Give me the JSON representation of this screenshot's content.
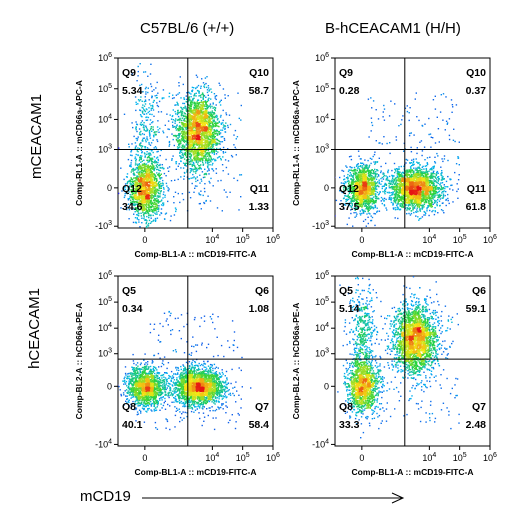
{
  "figure": {
    "column_titles": [
      "C57BL/6 (+/+)",
      "B-hCEACAM1 (H/H)"
    ],
    "row_titles": [
      "mCEACAM1",
      "hCEACAM1"
    ],
    "x_title": "mCD19"
  },
  "chart_data": [
    {
      "type": "scatter",
      "strain": "C57BL/6 (+/+)",
      "row": "mCEACAM1",
      "xlabel": "Comp-BL1-A :: mCD19-FITC-A",
      "ylabel": "Comp-RL1-A :: mCD66a-APC-A",
      "x_scale": "biexponential",
      "y_scale": "biexponential",
      "x_ticks": [
        "0",
        "10^4",
        "10^5",
        "10^6"
      ],
      "y_ticks": [
        "-10^3",
        "0",
        "10^3",
        "10^4",
        "10^5",
        "10^6"
      ],
      "quadrants": [
        {
          "name": "Q9",
          "position": "top-left",
          "percent": "5.34"
        },
        {
          "name": "Q10",
          "position": "top-right",
          "percent": "58.7"
        },
        {
          "name": "Q11",
          "position": "bottom-right",
          "percent": "1.33"
        },
        {
          "name": "Q12",
          "position": "bottom-left",
          "percent": "34.6"
        }
      ],
      "populations": [
        {
          "cx": 0,
          "cy": 0,
          "sx": 0.055,
          "sy": 0.09,
          "n": 1400
        },
        {
          "cx": 3200,
          "cy": 4200,
          "sx": 0.07,
          "sy": 0.11,
          "n": 2200
        },
        {
          "cx": 0,
          "cy": 6000,
          "sx": 0.045,
          "sy": 0.17,
          "n": 260
        }
      ]
    },
    {
      "type": "scatter",
      "strain": "B-hCEACAM1 (H/H)",
      "row": "mCEACAM1",
      "xlabel": "Comp-BL1-A :: mCD19-FITC-A",
      "ylabel": "Comp-RL1-A :: mCD66a-APC-A",
      "x_scale": "biexponential",
      "y_scale": "biexponential",
      "x_ticks": [
        "0",
        "10^4",
        "10^5",
        "10^6"
      ],
      "y_ticks": [
        "-10^3",
        "0",
        "10^3",
        "10^4",
        "10^5",
        "10^6"
      ],
      "quadrants": [
        {
          "name": "Q9",
          "position": "top-left",
          "percent": "0.28"
        },
        {
          "name": "Q10",
          "position": "top-right",
          "percent": "0.37"
        },
        {
          "name": "Q11",
          "position": "bottom-right",
          "percent": "61.8"
        },
        {
          "name": "Q12",
          "position": "bottom-left",
          "percent": "37.5"
        }
      ],
      "populations": [
        {
          "cx": 0,
          "cy": 0,
          "sx": 0.055,
          "sy": 0.07,
          "n": 1300
        },
        {
          "cx": 3200,
          "cy": 0,
          "sx": 0.08,
          "sy": 0.06,
          "n": 2100
        }
      ]
    },
    {
      "type": "scatter",
      "strain": "C57BL/6 (+/+)",
      "row": "hCEACAM1",
      "xlabel": "Comp-BL1-A :: mCD19-FITC-A",
      "ylabel": "Comp-BL2-A :: hCD66a-PE-A",
      "x_scale": "biexponential",
      "y_scale": "biexponential",
      "x_ticks": [
        "0",
        "10^4",
        "10^5",
        "10^6"
      ],
      "y_ticks": [
        "-10^4",
        "0",
        "10^3",
        "10^4",
        "10^5",
        "10^6"
      ],
      "quadrants": [
        {
          "name": "Q5",
          "position": "top-left",
          "percent": "0.34"
        },
        {
          "name": "Q6",
          "position": "top-right",
          "percent": "1.08"
        },
        {
          "name": "Q7",
          "position": "bottom-right",
          "percent": "58.4"
        },
        {
          "name": "Q8",
          "position": "bottom-left",
          "percent": "40.1"
        }
      ],
      "populations": [
        {
          "cx": 0,
          "cy": 0,
          "sx": 0.06,
          "sy": 0.06,
          "n": 1400
        },
        {
          "cx": 3400,
          "cy": 0,
          "sx": 0.08,
          "sy": 0.055,
          "n": 2100
        }
      ]
    },
    {
      "type": "scatter",
      "strain": "B-hCEACAM1 (H/H)",
      "row": "hCEACAM1",
      "xlabel": "Comp-BL1-A :: mCD19-FITC-A",
      "ylabel": "Comp-BL2-A :: hCD66a-PE-A",
      "x_scale": "biexponential",
      "y_scale": "biexponential",
      "x_ticks": [
        "0",
        "10^4",
        "10^5",
        "10^6"
      ],
      "y_ticks": [
        "-10^4",
        "0",
        "10^3",
        "10^4",
        "10^5",
        "10^6"
      ],
      "quadrants": [
        {
          "name": "Q5",
          "position": "top-left",
          "percent": "5.14"
        },
        {
          "name": "Q6",
          "position": "top-right",
          "percent": "59.1"
        },
        {
          "name": "Q7",
          "position": "bottom-right",
          "percent": "2.48"
        },
        {
          "name": "Q8",
          "position": "bottom-left",
          "percent": "33.3"
        }
      ],
      "populations": [
        {
          "cx": 0,
          "cy": 0,
          "sx": 0.05,
          "sy": 0.08,
          "n": 1200
        },
        {
          "cx": 3300,
          "cy": 4000,
          "sx": 0.07,
          "sy": 0.1,
          "n": 2200
        },
        {
          "cx": 0,
          "cy": 7000,
          "sx": 0.045,
          "sy": 0.16,
          "n": 420
        }
      ]
    }
  ]
}
